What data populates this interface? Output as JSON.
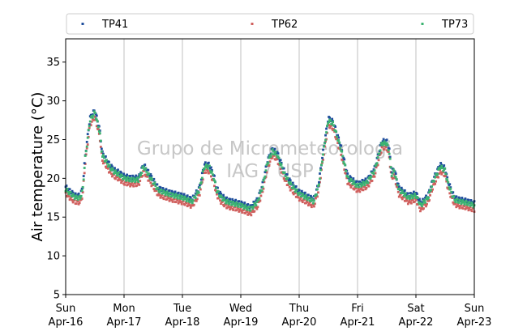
{
  "chart_data": {
    "type": "scatter",
    "ylabel": "Air temperature (°C)",
    "ylim": [
      5,
      38
    ],
    "yticks": [
      5,
      10,
      15,
      20,
      25,
      30,
      35
    ],
    "xlim": [
      "2017-04-16T00:00",
      "2017-04-23T00:00"
    ],
    "xticks": [
      {
        "date": "2017-04-16",
        "day": "Sun",
        "label": "Apr-16"
      },
      {
        "date": "2017-04-17",
        "day": "Mon",
        "label": "Apr-17"
      },
      {
        "date": "2017-04-18",
        "day": "Tue",
        "label": "Apr-18"
      },
      {
        "date": "2017-04-19",
        "day": "Wed",
        "label": "Apr-19"
      },
      {
        "date": "2017-04-20",
        "day": "Thu",
        "label": "Apr-20"
      },
      {
        "date": "2017-04-21",
        "day": "Fri",
        "label": "Apr-21"
      },
      {
        "date": "2017-04-22",
        "day": "Sat",
        "label": "Apr-22"
      },
      {
        "date": "2017-04-23",
        "day": "Sun",
        "label": "Apr-23"
      }
    ],
    "grid": "vertical",
    "legend_position": "top",
    "watermark": [
      "Grupo de Micrometeorologia",
      "IAG / USP"
    ],
    "series": [
      {
        "name": "TP41",
        "color": "#1f4e9c",
        "offset": 0.3
      },
      {
        "name": "TP62",
        "color": "#d0605e",
        "offset": -0.6
      },
      {
        "name": "TP73",
        "color": "#3cb371",
        "offset": 0.0
      }
    ],
    "x": [
      "2017-04-16T00:00",
      "2017-04-16T02:00",
      "2017-04-16T04:00",
      "2017-04-16T06:00",
      "2017-04-16T07:00",
      "2017-04-16T08:00",
      "2017-04-16T10:00",
      "2017-04-16T12:00",
      "2017-04-16T14:00",
      "2017-04-16T15:00",
      "2017-04-16T18:00",
      "2017-04-16T20:00",
      "2017-04-16T22:00",
      "2017-04-17T00:00",
      "2017-04-17T03:00",
      "2017-04-17T06:00",
      "2017-04-17T08:00",
      "2017-04-17T10:00",
      "2017-04-17T12:00",
      "2017-04-17T13:00",
      "2017-04-17T14:00",
      "2017-04-17T16:00",
      "2017-04-17T18:00",
      "2017-04-17T20:00",
      "2017-04-18T00:00",
      "2017-04-18T04:00",
      "2017-04-18T07:00",
      "2017-04-18T09:00",
      "2017-04-18T11:00",
      "2017-04-18T13:00",
      "2017-04-18T14:00",
      "2017-04-18T16:00",
      "2017-04-18T18:00",
      "2017-04-18T20:00",
      "2017-04-19T00:00",
      "2017-04-19T04:00",
      "2017-04-19T07:00",
      "2017-04-19T09:00",
      "2017-04-19T11:00",
      "2017-04-19T13:00",
      "2017-04-19T15:00",
      "2017-04-19T18:00",
      "2017-04-19T21:00",
      "2017-04-20T00:00",
      "2017-04-20T03:00",
      "2017-04-20T06:00",
      "2017-04-20T08:00",
      "2017-04-20T10:00",
      "2017-04-20T12:00",
      "2017-04-20T14:00",
      "2017-04-20T17:00",
      "2017-04-20T20:00",
      "2017-04-21T00:00",
      "2017-04-21T04:00",
      "2017-04-21T07:00",
      "2017-04-21T10:00",
      "2017-04-21T12:00",
      "2017-04-21T13:00",
      "2017-04-21T14:00",
      "2017-04-21T15:00",
      "2017-04-21T17:00",
      "2017-04-21T19:00",
      "2017-04-21T21:00",
      "2017-04-22T00:00",
      "2017-04-22T02:00",
      "2017-04-22T05:00",
      "2017-04-22T07:00",
      "2017-04-22T10:00",
      "2017-04-22T12:00",
      "2017-04-22T13:00",
      "2017-04-22T15:00",
      "2017-04-22T16:00",
      "2017-04-22T18:00",
      "2017-04-22T21:00",
      "2017-04-23T00:00"
    ],
    "y": [
      18.6,
      18.0,
      17.5,
      17.5,
      18.5,
      22.5,
      27.5,
      28.5,
      26.0,
      23.0,
      21.5,
      20.8,
      20.5,
      20.0,
      19.8,
      19.8,
      21.5,
      20.5,
      19.5,
      19.0,
      18.5,
      18.2,
      18.0,
      17.8,
      17.5,
      17.0,
      18.5,
      21.5,
      21.5,
      20.0,
      18.5,
      17.5,
      17.0,
      16.8,
      16.5,
      16.0,
      17.0,
      19.0,
      22.0,
      23.5,
      23.0,
      20.5,
      19.0,
      18.0,
      17.5,
      17.0,
      19.0,
      23.5,
      27.5,
      27.0,
      24.0,
      20.0,
      19.0,
      19.5,
      21.0,
      24.5,
      24.5,
      23.5,
      20.5,
      21.0,
      18.5,
      18.0,
      17.5,
      17.8,
      16.5,
      17.5,
      19.5,
      21.5,
      21.0,
      19.5,
      17.8,
      17.2,
      17.0,
      16.8,
      16.5
    ]
  }
}
